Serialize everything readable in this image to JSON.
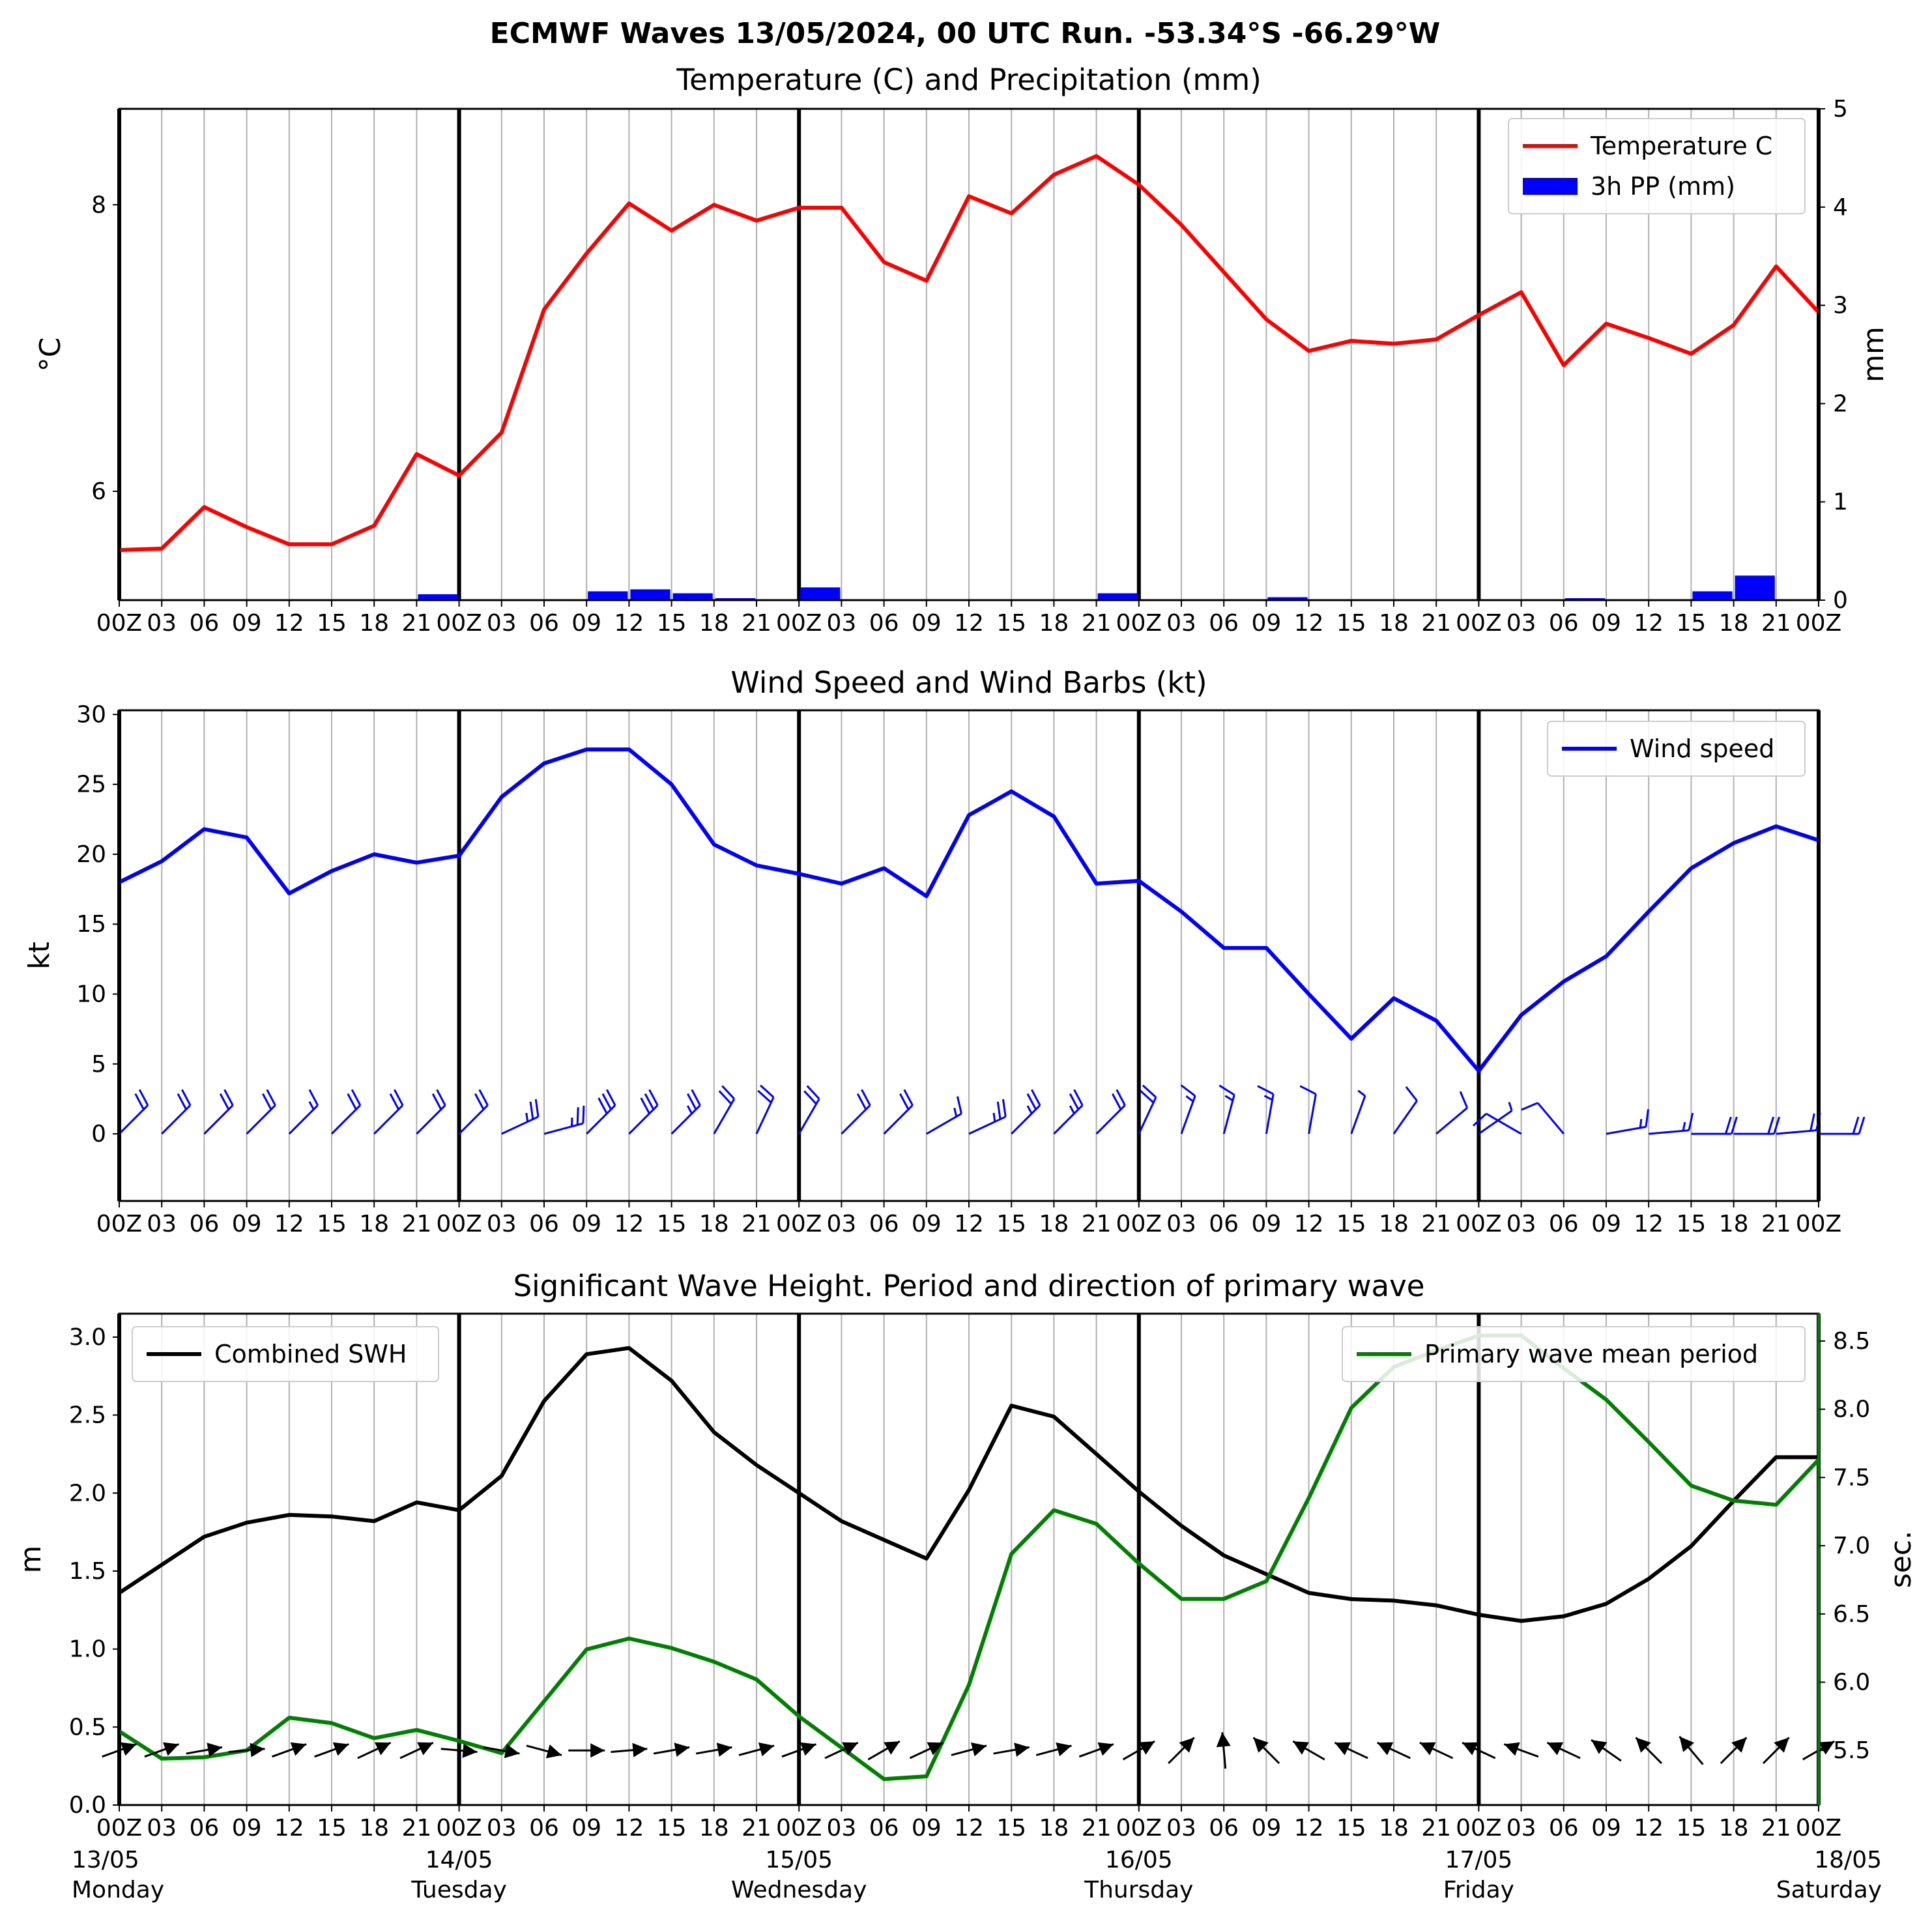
{
  "figure": {
    "title": "ECMWF Waves 13/05/2024, 00 UTC Run. -53.34°S -66.29°W"
  },
  "x_axis": {
    "hour_ticks": [
      "00Z",
      "03",
      "06",
      "09",
      "12",
      "15",
      "18",
      "21",
      "00Z",
      "03",
      "06",
      "09",
      "12",
      "15",
      "18",
      "21",
      "00Z",
      "03",
      "06",
      "09",
      "12",
      "15",
      "18",
      "21",
      "00Z",
      "03",
      "06",
      "09",
      "12",
      "15",
      "18",
      "21",
      "00Z",
      "03",
      "06",
      "09",
      "12",
      "15",
      "18",
      "21",
      "00Z"
    ],
    "day_dates": [
      "13/05",
      "14/05",
      "15/05",
      "16/05",
      "17/05",
      "18/05"
    ],
    "day_names": [
      "Monday",
      "Tuesday",
      "Wednesday",
      "Thursday",
      "Friday",
      "Saturday"
    ],
    "day_index": [
      0,
      8,
      16,
      24,
      32,
      40
    ]
  },
  "chart_data": [
    {
      "type": "line",
      "title": "Temperature (C) and Precipitation (mm)",
      "ylabel": "°C",
      "y2label": "mm",
      "ylim": [
        5.24,
        8.67
      ],
      "y2lim": [
        0,
        5
      ],
      "yticks": [
        "6",
        "8"
      ],
      "y2ticks": [
        "0",
        "1",
        "2",
        "3",
        "4",
        "5"
      ],
      "grid": true,
      "legend_position": "top-right",
      "series": [
        {
          "name": "Temperature C",
          "color": "#ff0000",
          "kind": "line",
          "values": [
            5.59,
            5.6,
            5.89,
            5.75,
            5.63,
            5.63,
            5.76,
            6.26,
            6.11,
            6.41,
            7.27,
            7.66,
            8.01,
            7.82,
            8.0,
            7.89,
            7.98,
            7.98,
            7.6,
            7.47,
            8.06,
            7.94,
            8.21,
            8.34,
            8.14,
            7.86,
            7.53,
            7.2,
            6.98,
            7.05,
            7.03,
            7.06,
            7.23,
            7.39,
            6.88,
            7.17,
            7.07,
            6.96,
            7.16,
            7.57,
            7.25
          ]
        },
        {
          "name": "3h PP (mm)",
          "color": "#0000ff",
          "kind": "bar",
          "values": [
            0,
            0,
            0,
            0,
            0,
            0.01,
            0,
            0.06,
            0,
            0,
            0,
            0.09,
            0.11,
            0.07,
            0.02,
            0,
            0.13,
            0,
            0,
            0,
            0,
            0,
            0,
            0.07,
            0,
            0,
            0,
            0.03,
            0,
            0,
            0,
            0,
            0,
            0,
            0.02,
            0,
            0,
            0.09,
            0.25,
            0,
            0
          ]
        }
      ]
    },
    {
      "type": "line",
      "title": "Wind Speed and Wind Barbs (kt)",
      "ylabel": "kt",
      "ylim": [
        -4.8,
        30.3
      ],
      "yticks": [
        "0",
        "5",
        "10",
        "15",
        "20",
        "25",
        "30"
      ],
      "grid": true,
      "legend_position": "top-right",
      "series": [
        {
          "name": "Wind speed",
          "color": "#0000ff",
          "values": [
            18.0,
            19.5,
            21.8,
            21.2,
            17.2,
            18.8,
            20.0,
            19.4,
            19.9,
            24.1,
            26.5,
            27.5,
            27.5,
            25.0,
            20.7,
            19.2,
            18.6,
            17.9,
            19.0,
            17.0,
            22.8,
            24.5,
            22.7,
            17.9,
            18.1,
            15.9,
            13.3,
            13.3,
            10.0,
            6.8,
            9.7,
            8.1,
            4.5,
            8.5,
            10.9,
            12.7,
            15.9,
            19.0,
            20.8,
            22.0,
            21.0
          ]
        }
      ],
      "barb_directions_deg": [
        225,
        225,
        225,
        225,
        225,
        225,
        225,
        225,
        225,
        245,
        255,
        225,
        225,
        225,
        210,
        205,
        210,
        225,
        225,
        240,
        245,
        225,
        225,
        225,
        205,
        200,
        195,
        190,
        190,
        200,
        215,
        230,
        235,
        120,
        140,
        260,
        265,
        270,
        270,
        265,
        270
      ]
    },
    {
      "type": "line",
      "title": "Significant Wave Height. Period and direction of primary wave",
      "ylabel": "m",
      "y2label": "sec.",
      "ylim": [
        0,
        3.15
      ],
      "y2lim": [
        5.1,
        8.7
      ],
      "yticks": [
        "0.0",
        "0.5",
        "1.0",
        "1.5",
        "2.0",
        "2.5",
        "3.0"
      ],
      "y2ticks": [
        "5.5",
        "6.0",
        "6.5",
        "7.0",
        "7.5",
        "8.0",
        "8.5"
      ],
      "grid": true,
      "series": [
        {
          "name": "Combined SWH",
          "color": "#000000",
          "legend_position": "top-left",
          "values": [
            1.36,
            1.54,
            1.72,
            1.81,
            1.86,
            1.85,
            1.82,
            1.94,
            1.89,
            2.11,
            2.59,
            2.89,
            2.93,
            2.72,
            2.39,
            2.18,
            2.0,
            1.82,
            1.7,
            1.58,
            2.02,
            2.56,
            2.49,
            2.25,
            2.01,
            1.79,
            1.6,
            1.48,
            1.36,
            1.32,
            1.31,
            1.28,
            1.22,
            1.18,
            1.21,
            1.29,
            1.45,
            1.66,
            1.95,
            2.23,
            2.23
          ]
        },
        {
          "name": "Primary wave mean period",
          "color": "#008000",
          "legend_position": "top-right",
          "values": [
            5.64,
            5.44,
            5.45,
            5.5,
            5.74,
            5.7,
            5.59,
            5.65,
            5.57,
            5.48,
            5.86,
            6.24,
            6.32,
            6.25,
            6.15,
            6.02,
            5.75,
            5.52,
            5.29,
            5.31,
            5.98,
            6.94,
            7.26,
            7.16,
            6.87,
            6.61,
            6.61,
            6.74,
            7.35,
            8.01,
            8.31,
            8.43,
            8.54,
            8.54,
            8.3,
            8.07,
            7.76,
            7.44,
            7.33,
            7.3,
            7.63
          ]
        }
      ],
      "wave_directions_deg": [
        250,
        250,
        260,
        265,
        250,
        250,
        245,
        245,
        275,
        280,
        285,
        270,
        265,
        260,
        260,
        255,
        250,
        245,
        240,
        245,
        255,
        260,
        255,
        250,
        240,
        225,
        175,
        135,
        120,
        115,
        115,
        115,
        115,
        110,
        115,
        125,
        135,
        140,
        225,
        225,
        240
      ]
    }
  ]
}
